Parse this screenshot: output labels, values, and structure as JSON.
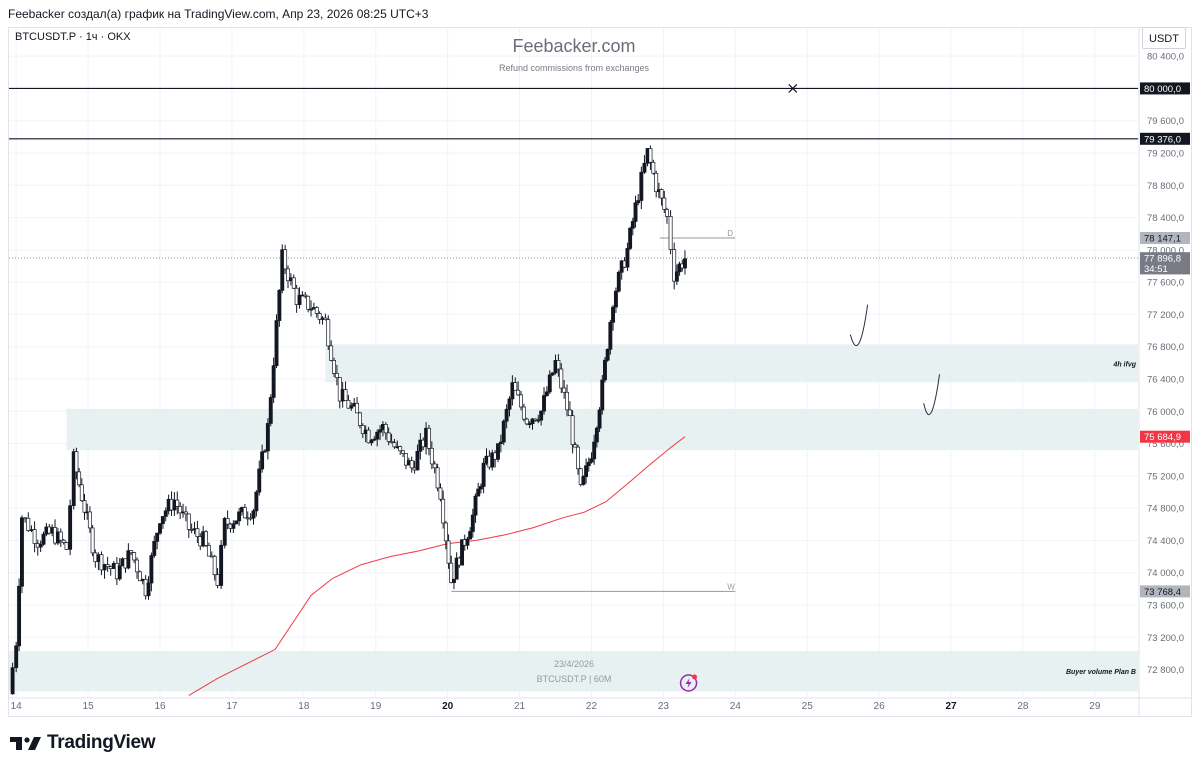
{
  "header": {
    "caption": "Feebacker создал(а) график на TradingView.com, Апр 23, 2026 08:25 UTC+3"
  },
  "chart_header": {
    "symbol_line": "BTCUSDT.P · 1ч · OKX",
    "currency": "USDT"
  },
  "watermark": {
    "title": "Feebacker.com",
    "subtitle": "Refund commissions from exchanges",
    "date": "23/4/2026",
    "symbol": "BTCUSDT.P | 60M"
  },
  "footer": {
    "brand": "TradingView"
  },
  "colors": {
    "up": "#131722",
    "down": "#ffffff",
    "zone_fill": "#e6f0f0",
    "ma_line": "#f23645",
    "grid": "#f0f3fa",
    "axis_text": "#6a6d78"
  },
  "chart_data": {
    "type": "candlestick",
    "ylim": [
      72460,
      80600
    ],
    "y_ticks": [
      "72 800,0",
      "73 200,0",
      "73 600,0",
      "74 000,0",
      "74 400,0",
      "74 800,0",
      "75 200,0",
      "75 600,0",
      "76 000,0",
      "76 400,0",
      "76 800,0",
      "77 200,0",
      "77 600,0",
      "78 000,0",
      "78 400,0",
      "78 800,0",
      "79 200,0",
      "79 600,0",
      "80 000,0",
      "80 400,0",
      "80 800,0"
    ],
    "y_tick_values": [
      72800,
      73200,
      73600,
      74000,
      74400,
      74800,
      75200,
      75600,
      76000,
      76400,
      76800,
      77200,
      77600,
      78000,
      78400,
      78800,
      79200,
      79600,
      80000,
      80400,
      80800
    ],
    "x_ticks": [
      "14",
      "15",
      "16",
      "17",
      "18",
      "19",
      "20",
      "21",
      "22",
      "23",
      "24",
      "25",
      "26",
      "27",
      "28",
      "29"
    ],
    "x_tick_days": [
      14,
      15,
      16,
      17,
      18,
      19,
      20,
      21,
      22,
      23,
      24,
      25,
      26,
      27,
      28,
      29
    ],
    "x_bold_ticks": [
      "20",
      "27"
    ],
    "x_range_days": [
      13.9,
      29.6
    ],
    "price_labels": [
      {
        "text": "80 000,0",
        "value": 80000,
        "style": "black"
      },
      {
        "text": "79 376,0",
        "value": 79376,
        "style": "black"
      },
      {
        "text": "78 147,1",
        "value": 78147.1,
        "style": "gray"
      },
      {
        "text": "77 896,8",
        "value": 77896.8,
        "style": "current"
      },
      {
        "text": "34:51",
        "value": 77770,
        "style": "current"
      },
      {
        "text": "75 684,9",
        "value": 75684.9,
        "style": "red"
      },
      {
        "text": "73 768,4",
        "value": 73768.4,
        "style": "gray"
      }
    ],
    "horizontal_lines": [
      {
        "value": 80000,
        "x_from_day": 13.9,
        "x_to_day": 29.6
      },
      {
        "value": 79376,
        "x_from_day": 13.9,
        "x_to_day": 29.6
      }
    ],
    "level_lines": [
      {
        "value": 78147.1,
        "x_from_day": 22.95,
        "x_to_day": 24.0,
        "label": "D"
      },
      {
        "value": 73768.4,
        "x_from_day": 20.05,
        "x_to_day": 24.0,
        "label": "W"
      }
    ],
    "zones": [
      {
        "name": "4h ifvg",
        "from": 76360,
        "to": 76830,
        "x_from_day": 18.3,
        "x_to_day": 29.6
      },
      {
        "name": "",
        "from": 75520,
        "to": 76030,
        "x_from_day": 14.7,
        "x_to_day": 29.6
      },
      {
        "name": "Buyer volume Plan B",
        "from": 72530,
        "to": 73030,
        "x_from_day": 13.9,
        "x_to_day": 29.6
      }
    ],
    "ma": [
      {
        "day": 16.4,
        "v": 72480
      },
      {
        "day": 16.8,
        "v": 72690
      },
      {
        "day": 17.2,
        "v": 72870
      },
      {
        "day": 17.6,
        "v": 73050
      },
      {
        "day": 17.9,
        "v": 73450
      },
      {
        "day": 18.1,
        "v": 73720
      },
      {
        "day": 18.4,
        "v": 73930
      },
      {
        "day": 18.8,
        "v": 74100
      },
      {
        "day": 19.2,
        "v": 74200
      },
      {
        "day": 19.6,
        "v": 74270
      },
      {
        "day": 20.0,
        "v": 74360
      },
      {
        "day": 20.4,
        "v": 74400
      },
      {
        "day": 20.8,
        "v": 74470
      },
      {
        "day": 21.2,
        "v": 74560
      },
      {
        "day": 21.6,
        "v": 74680
      },
      {
        "day": 21.9,
        "v": 74750
      },
      {
        "day": 22.2,
        "v": 74880
      },
      {
        "day": 22.5,
        "v": 75100
      },
      {
        "day": 22.8,
        "v": 75330
      },
      {
        "day": 23.1,
        "v": 75550
      },
      {
        "day": 23.3,
        "v": 75684.9
      }
    ],
    "price_path": [
      {
        "day": 13.9,
        "v": 72500
      },
      {
        "day": 14.0,
        "v": 73150
      },
      {
        "day": 14.08,
        "v": 74700
      },
      {
        "day": 14.3,
        "v": 74400
      },
      {
        "day": 14.5,
        "v": 74500
      },
      {
        "day": 14.7,
        "v": 74300
      },
      {
        "day": 14.8,
        "v": 75400
      },
      {
        "day": 14.95,
        "v": 74800
      },
      {
        "day": 15.1,
        "v": 74200
      },
      {
        "day": 15.4,
        "v": 74000
      },
      {
        "day": 15.6,
        "v": 74250
      },
      {
        "day": 15.8,
        "v": 73800
      },
      {
        "day": 16.0,
        "v": 74700
      },
      {
        "day": 16.2,
        "v": 74900
      },
      {
        "day": 16.4,
        "v": 74550
      },
      {
        "day": 16.6,
        "v": 74400
      },
      {
        "day": 16.8,
        "v": 73900
      },
      {
        "day": 16.9,
        "v": 74600
      },
      {
        "day": 17.1,
        "v": 74700
      },
      {
        "day": 17.3,
        "v": 74800
      },
      {
        "day": 17.5,
        "v": 75800
      },
      {
        "day": 17.7,
        "v": 77900
      },
      {
        "day": 17.9,
        "v": 77400
      },
      {
        "day": 18.1,
        "v": 77300
      },
      {
        "day": 18.3,
        "v": 77100
      },
      {
        "day": 18.5,
        "v": 76200
      },
      {
        "day": 18.7,
        "v": 76000
      },
      {
        "day": 18.9,
        "v": 75700
      },
      {
        "day": 19.1,
        "v": 75800
      },
      {
        "day": 19.3,
        "v": 75500
      },
      {
        "day": 19.5,
        "v": 75300
      },
      {
        "day": 19.7,
        "v": 75700
      },
      {
        "day": 19.9,
        "v": 75000
      },
      {
        "day": 20.05,
        "v": 73900
      },
      {
        "day": 20.2,
        "v": 74300
      },
      {
        "day": 20.35,
        "v": 74700
      },
      {
        "day": 20.5,
        "v": 75300
      },
      {
        "day": 20.7,
        "v": 75500
      },
      {
        "day": 20.9,
        "v": 76300
      },
      {
        "day": 21.1,
        "v": 75900
      },
      {
        "day": 21.3,
        "v": 76000
      },
      {
        "day": 21.5,
        "v": 76600
      },
      {
        "day": 21.7,
        "v": 75900
      },
      {
        "day": 21.85,
        "v": 75000
      },
      {
        "day": 22.0,
        "v": 75500
      },
      {
        "day": 22.15,
        "v": 76300
      },
      {
        "day": 22.3,
        "v": 77400
      },
      {
        "day": 22.5,
        "v": 78000
      },
      {
        "day": 22.65,
        "v": 78700
      },
      {
        "day": 22.78,
        "v": 79200
      },
      {
        "day": 22.9,
        "v": 78800
      },
      {
        "day": 23.05,
        "v": 78400
      },
      {
        "day": 23.15,
        "v": 77700
      },
      {
        "day": 23.3,
        "v": 77897
      }
    ],
    "projections": [
      {
        "from_day": 25.6,
        "from_v": 76950,
        "bottom_day": 25.72,
        "bottom_v": 76700,
        "to_day": 25.84,
        "to_v": 77320
      },
      {
        "from_day": 26.62,
        "from_v": 76100,
        "bottom_day": 26.72,
        "bottom_v": 75840,
        "to_day": 26.84,
        "to_v": 76460
      }
    ],
    "close_marker_day": 24.8
  }
}
